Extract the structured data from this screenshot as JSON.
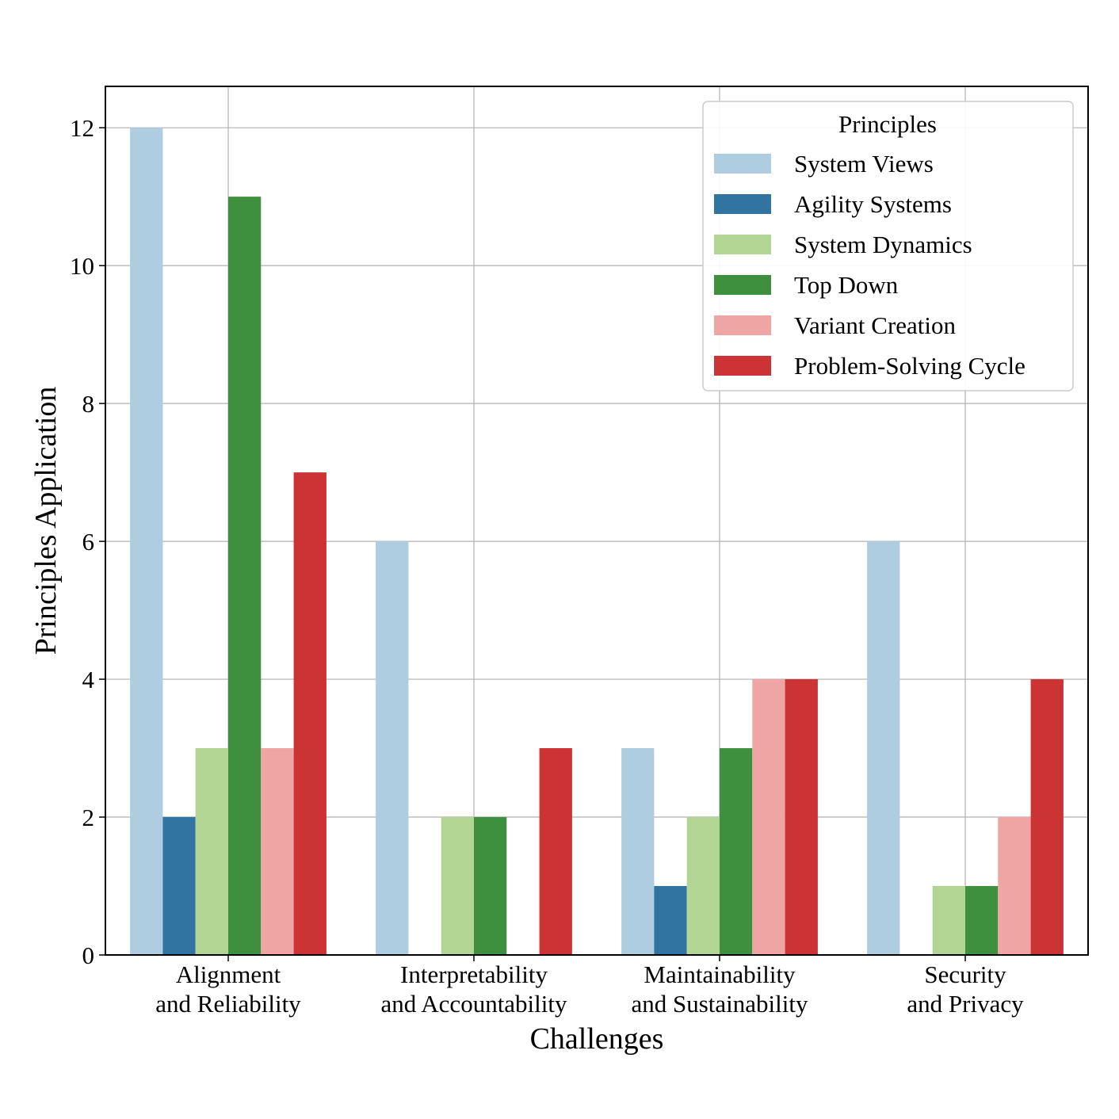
{
  "chart_data": {
    "type": "bar",
    "xlabel": "Challenges",
    "ylabel": "Principles Application",
    "ylim": [
      0,
      12.6
    ],
    "yticks": [
      0,
      2,
      4,
      6,
      8,
      10,
      12
    ],
    "grid": true,
    "categories": [
      [
        "Alignment",
        "and Reliability"
      ],
      [
        "Interpretability",
        "and Accountability"
      ],
      [
        "Maintainability",
        "and Sustainability"
      ],
      [
        "Security",
        "and Privacy"
      ]
    ],
    "legend": {
      "title": "Principles",
      "position": "top-right"
    },
    "series": [
      {
        "name": "System Views",
        "color": "#aecde0",
        "values": [
          12,
          6,
          3,
          6
        ]
      },
      {
        "name": "Agility Systems",
        "color": "#3274a1",
        "values": [
          2,
          0,
          1,
          0
        ]
      },
      {
        "name": "System Dynamics",
        "color": "#b3d593",
        "values": [
          3,
          2,
          2,
          1
        ]
      },
      {
        "name": "Top Down",
        "color": "#3f903e",
        "values": [
          11,
          2,
          3,
          1
        ]
      },
      {
        "name": "Variant Creation",
        "color": "#f0a5a5",
        "values": [
          3,
          0,
          4,
          2
        ]
      },
      {
        "name": "Problem-Solving Cycle",
        "color": "#cb3335",
        "values": [
          7,
          3,
          4,
          4
        ]
      }
    ]
  }
}
